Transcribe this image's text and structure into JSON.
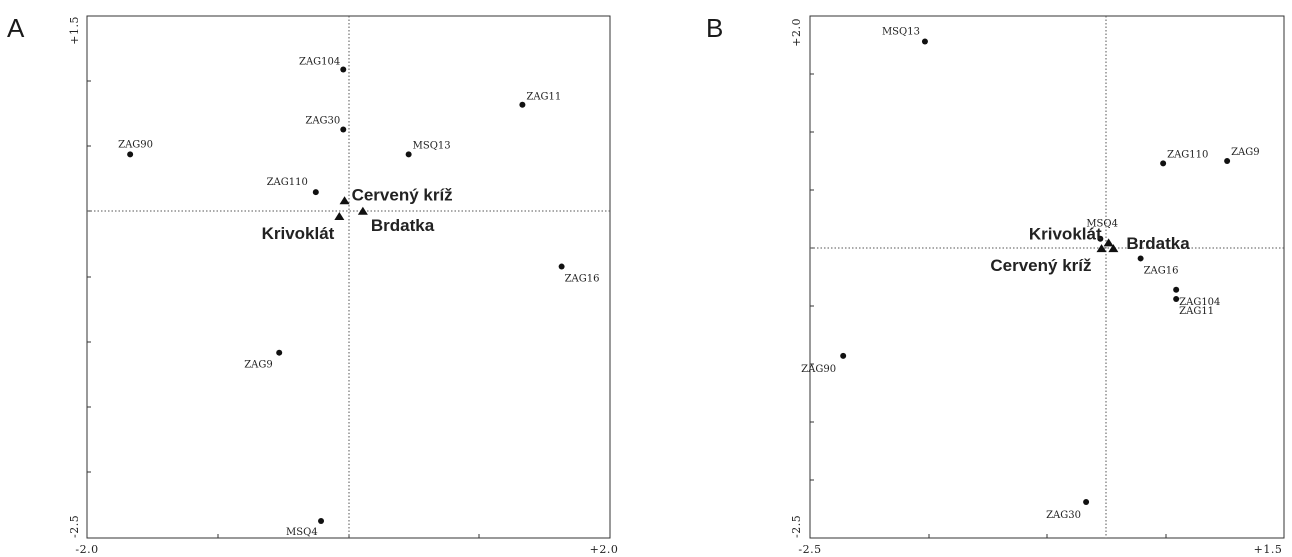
{
  "chart_data": [
    {
      "type": "scatter",
      "panel": "A",
      "xlim": [
        -2.0,
        2.0
      ],
      "ylim": [
        -2.5,
        1.5
      ],
      "x_tick_labels": [
        "-2.0",
        "+2.0"
      ],
      "y_tick_labels": [
        "+1.5",
        "-2.5"
      ],
      "points": [
        {
          "label": "ZAG104",
          "x": -0.04,
          "y": 1.09
        },
        {
          "label": "ZAG11",
          "x": 1.33,
          "y": 0.82
        },
        {
          "label": "ZAG30",
          "x": -0.04,
          "y": 0.63
        },
        {
          "label": "MSQ13",
          "x": 0.46,
          "y": 0.44
        },
        {
          "label": "ZAG90",
          "x": -1.67,
          "y": 0.44
        },
        {
          "label": "ZAG110",
          "x": -0.25,
          "y": 0.15
        },
        {
          "label": "ZAG16",
          "x": 1.63,
          "y": -0.42
        },
        {
          "label": "ZAG9",
          "x": -0.53,
          "y": -1.08
        },
        {
          "label": "MSQ4",
          "x": -0.21,
          "y": -2.37
        }
      ],
      "groups": [
        {
          "label": "Cervený kríž",
          "x": -0.03,
          "y": 0.08
        },
        {
          "label": "Brdatka",
          "x": 0.11,
          "y": 0.0
        },
        {
          "label": "Krivoklát",
          "x": -0.07,
          "y": -0.04
        }
      ]
    },
    {
      "type": "scatter",
      "panel": "B",
      "xlim": [
        -2.5,
        1.5
      ],
      "ylim": [
        -2.5,
        2.0
      ],
      "x_tick_labels": [
        "-2.5",
        "+1.5"
      ],
      "y_tick_labels": [
        "+2.0",
        "-2.5"
      ],
      "points": [
        {
          "label": "MSQ13",
          "x": -1.53,
          "y": 1.78
        },
        {
          "label": "ZAG110",
          "x": 0.48,
          "y": 0.73
        },
        {
          "label": "ZAG9",
          "x": 1.02,
          "y": 0.75
        },
        {
          "label": "MSQ4",
          "x": -0.05,
          "y": 0.08
        },
        {
          "label": "ZAG16",
          "x": 0.29,
          "y": -0.09
        },
        {
          "label": "ZAG104",
          "x": 0.59,
          "y": -0.36
        },
        {
          "label": "ZAG11",
          "x": 0.59,
          "y": -0.44
        },
        {
          "label": "ZAG90",
          "x": -2.22,
          "y": -0.93
        },
        {
          "label": "ZAG30",
          "x": -0.17,
          "y": -2.19
        }
      ],
      "groups": [
        {
          "label": "Krivoklát",
          "x": 0.02,
          "y": 0.04
        },
        {
          "label": "Brdatka",
          "x": 0.06,
          "y": -0.01
        },
        {
          "label": "Cervený kríž",
          "x": -0.04,
          "y": -0.01
        }
      ]
    }
  ]
}
